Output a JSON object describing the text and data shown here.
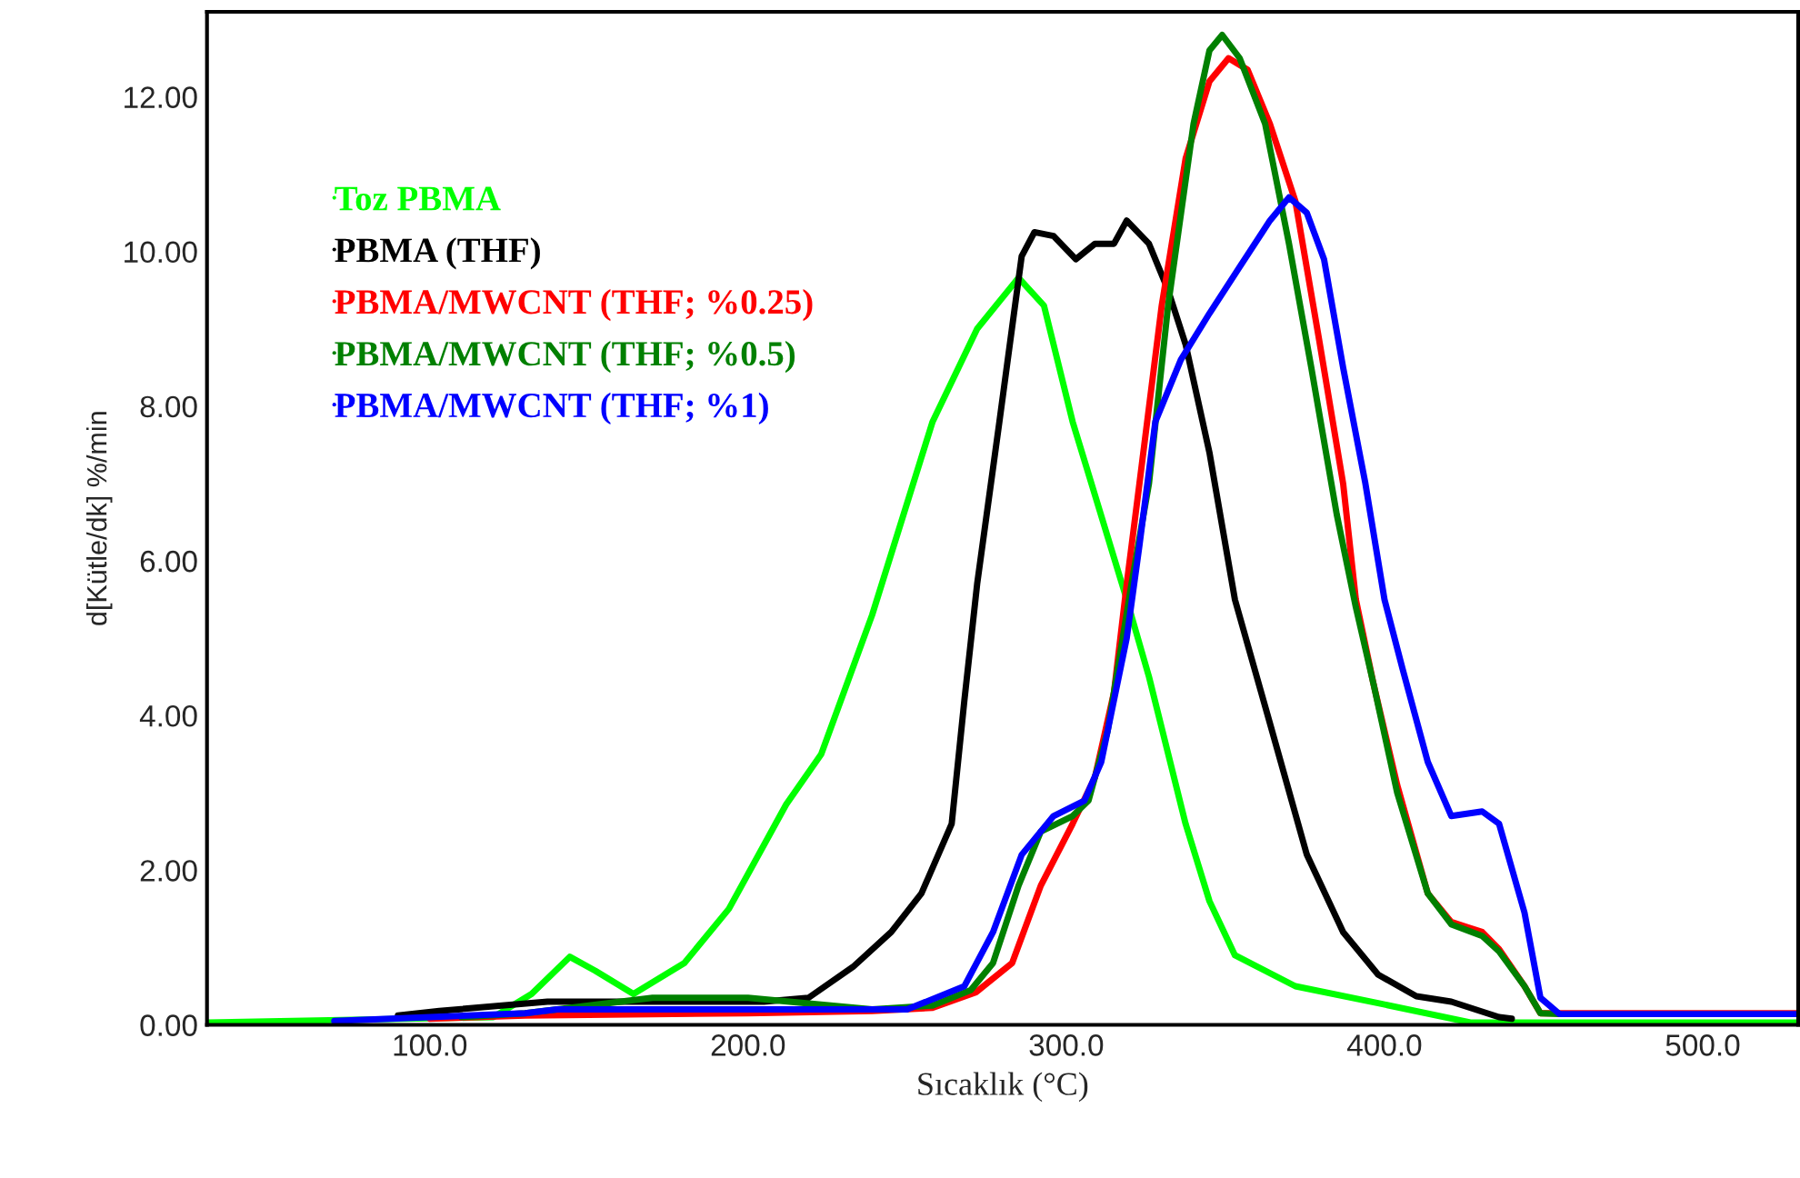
{
  "chart_data": {
    "type": "line",
    "xlabel": "Sıcaklık (°C)",
    "ylabel": "d[Kütle/dk] %/min",
    "xlim": [
      30,
      530
    ],
    "ylim": [
      0,
      13.1
    ],
    "xticks": [
      {
        "value": 100,
        "label": "100.0"
      },
      {
        "value": 200,
        "label": "200.0"
      },
      {
        "value": 300,
        "label": "300.0"
      },
      {
        "value": 400,
        "label": "400.0"
      },
      {
        "value": 500,
        "label": "500.0"
      }
    ],
    "yticks": [
      {
        "value": 0,
        "label": "0.00"
      },
      {
        "value": 2,
        "label": "2.00"
      },
      {
        "value": 4,
        "label": "4.00"
      },
      {
        "value": 6,
        "label": "6.00"
      },
      {
        "value": 8,
        "label": "8.00"
      },
      {
        "value": 10,
        "label": "10.00"
      },
      {
        "value": 12,
        "label": "12.00"
      }
    ],
    "grid": false,
    "legend": "top left",
    "marker": "none",
    "line_style": "solid",
    "series": [
      {
        "name": "Toz PBMA",
        "color": "#00ff00",
        "x": [
          30,
          120,
          132,
          144,
          152,
          164,
          180,
          194,
          212,
          223,
          239,
          258,
          272,
          285,
          293,
          302,
          319,
          326,
          337.5,
          345,
          353,
          372,
          398,
          427,
          530
        ],
        "values": [
          0.03,
          0.1,
          0.4,
          0.88,
          0.7,
          0.4,
          0.8,
          1.5,
          2.85,
          3.5,
          5.3,
          7.8,
          9.0,
          9.66,
          9.3,
          7.8,
          5.5,
          4.5,
          2.6,
          1.6,
          0.9,
          0.5,
          0.28,
          0.03,
          0.03
        ]
      },
      {
        "name": "PBMA (THF)",
        "color": "#000000",
        "x": [
          90,
          103,
          137,
          205,
          219,
          233,
          245,
          254.5,
          264,
          268,
          272,
          279,
          286,
          290,
          296,
          303,
          309,
          315,
          319,
          326,
          332,
          337.5,
          345,
          353,
          364,
          375.6,
          387,
          398,
          410,
          421,
          436,
          440
        ],
        "values": [
          0.12,
          0.18,
          0.3,
          0.3,
          0.35,
          0.75,
          1.2,
          1.7,
          2.6,
          4.2,
          5.7,
          7.8,
          9.94,
          10.25,
          10.2,
          9.9,
          10.1,
          10.1,
          10.4,
          10.1,
          9.5,
          8.8,
          7.4,
          5.5,
          3.9,
          2.2,
          1.2,
          0.65,
          0.37,
          0.3,
          0.1,
          0.08
        ]
      },
      {
        "name": "PBMA/MWCNT (THF; %0.25)",
        "color": "#ff0000",
        "x": [
          100,
          130,
          200,
          239,
          258,
          271.6,
          283,
          292,
          302,
          309,
          315,
          319,
          323,
          330,
          337.5,
          345,
          351,
          357,
          364,
          372,
          379.5,
          387,
          391,
          396.6,
          404,
          413.6,
          421,
          430.7,
          436,
          444,
          449,
          455,
          530
        ],
        "values": [
          0.08,
          0.12,
          0.15,
          0.18,
          0.22,
          0.42,
          0.8,
          1.8,
          2.6,
          3.2,
          4.3,
          5.7,
          7.0,
          9.3,
          11.2,
          12.2,
          12.5,
          12.35,
          11.65,
          10.65,
          8.85,
          7.0,
          5.5,
          4.4,
          3.1,
          1.7,
          1.33,
          1.2,
          0.98,
          0.5,
          0.15,
          0.15,
          0.15
        ]
      },
      {
        "name": "PBMA/MWCNT (THF; %0.5)",
        "color": "#008000",
        "x": [
          110,
          130,
          170,
          200,
          239,
          258,
          270,
          277,
          285,
          292,
          302,
          307,
          313,
          320.5,
          326,
          332,
          340,
          345,
          349,
          354.5,
          362.5,
          370,
          377,
          385,
          391,
          396.6,
          404,
          413.6,
          421,
          430.7,
          436,
          444,
          449,
          455
        ],
        "values": [
          0.1,
          0.15,
          0.35,
          0.35,
          0.2,
          0.25,
          0.45,
          0.8,
          1.8,
          2.5,
          2.7,
          2.9,
          3.8,
          5.7,
          7.0,
          9.3,
          11.65,
          12.6,
          12.8,
          12.5,
          11.65,
          10.1,
          8.5,
          6.6,
          5.4,
          4.4,
          3.0,
          1.7,
          1.3,
          1.15,
          0.95,
          0.5,
          0.15,
          0.14
        ]
      },
      {
        "name": "PBMA/MWCNT (THF; %1)",
        "color": "#0000ff",
        "x": [
          70,
          130,
          140,
          200,
          250,
          268,
          277,
          286,
          296,
          305.7,
          311,
          319,
          323,
          328,
          336,
          345,
          354.5,
          364,
          370,
          375.6,
          381,
          387,
          394,
          400,
          405.7,
          413.6,
          421,
          430.7,
          436,
          444,
          449,
          455,
          530
        ],
        "values": [
          0.05,
          0.15,
          0.2,
          0.2,
          0.2,
          0.5,
          1.2,
          2.2,
          2.7,
          2.9,
          3.4,
          5.0,
          6.2,
          7.8,
          8.6,
          9.2,
          9.8,
          10.4,
          10.7,
          10.5,
          9.9,
          8.5,
          7.0,
          5.5,
          4.6,
          3.4,
          2.7,
          2.76,
          2.6,
          1.45,
          0.35,
          0.14,
          0.14
        ]
      }
    ]
  }
}
